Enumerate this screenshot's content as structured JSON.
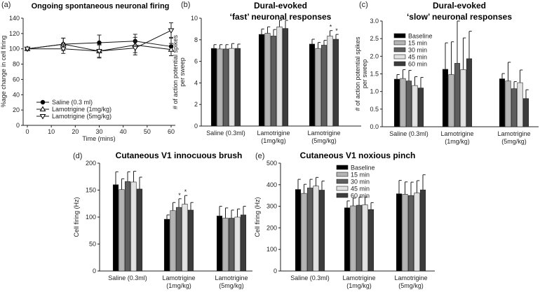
{
  "chart_data": [
    {
      "panel": "(a)",
      "type": "line",
      "title": "Ongoing spontaneous neuronal firing",
      "xlabel": "Time (mins)",
      "ylabel": "%age change in cell firing",
      "xlim": [
        0,
        60
      ],
      "ylim": [
        0,
        140
      ],
      "xticks": [
        0,
        10,
        20,
        30,
        40,
        50,
        60
      ],
      "yticks": [
        0,
        20,
        40,
        60,
        80,
        100,
        120,
        140
      ],
      "legend_position": "bottom-left",
      "x": [
        0,
        15,
        30,
        45,
        60
      ],
      "series": [
        {
          "name": "Saline (0.3 ml)",
          "marker": "circle",
          "values": [
            100,
            106,
            108,
            110,
            103
          ],
          "errors": [
            0,
            8,
            10,
            9,
            12
          ]
        },
        {
          "name": "Lamotrigine (1mg/kg)",
          "marker": "triangle-up",
          "values": [
            100,
            106,
            97,
            105,
            99
          ],
          "errors": [
            0,
            8,
            8,
            10,
            8
          ]
        },
        {
          "name": "Lamotrigine (5mg/kg)",
          "marker": "triangle-down",
          "values": [
            100,
            100,
            97,
            101,
            124
          ],
          "errors": [
            0,
            6,
            9,
            9,
            10
          ]
        }
      ]
    },
    {
      "panel": "(b)",
      "type": "bar",
      "title": [
        "Dural-evoked",
        "‘fast’ neuronal responses"
      ],
      "ylabel": [
        "# of action potential spikes",
        "per sweep"
      ],
      "ylim": [
        0,
        10
      ],
      "yticks": [
        0,
        2,
        4,
        6,
        8,
        10
      ],
      "yfmt": 0,
      "categories": [
        [
          "Saline (0.3ml)"
        ],
        [
          "Lamotrigine",
          "(1mg/kg)"
        ],
        [
          "Lamotrigine",
          "(5mg/kg)"
        ]
      ],
      "values": [
        [
          7.2,
          7.15,
          7.15,
          7.2,
          7.2
        ],
        [
          8.5,
          8.6,
          8.35,
          9.2,
          9.05
        ],
        [
          7.6,
          7.2,
          7.5,
          8.35,
          8.05
        ]
      ],
      "errors": [
        [
          0.35,
          0.4,
          0.4,
          0.45,
          0.4
        ],
        [
          0.5,
          0.6,
          0.6,
          0.6,
          0.75
        ],
        [
          0.45,
          0.55,
          0.45,
          0.5,
          0.45
        ]
      ],
      "significant": [
        [
          2,
          3
        ],
        [
          2,
          4
        ]
      ]
    },
    {
      "panel": "(c)",
      "type": "bar",
      "title": [
        "Dural-evoked",
        "‘slow’ neuronal responses"
      ],
      "ylabel": [
        "# of action potential spikes",
        "per sweep"
      ],
      "ylim": [
        0,
        3
      ],
      "yticks": [
        0,
        0.5,
        1,
        1.5,
        2,
        2.5,
        3
      ],
      "yfmt": 1,
      "legend_position": "top-left",
      "categories": [
        [
          "Saline (0.3ml)"
        ],
        [
          "Lamotrigine",
          "(1mg/kg)"
        ],
        [
          "Lamotrigine",
          "(5mg/kg)"
        ]
      ],
      "values": [
        [
          1.35,
          1.37,
          1.3,
          1.17,
          1.1
        ],
        [
          1.63,
          1.48,
          1.8,
          1.62,
          1.93
        ],
        [
          1.36,
          1.3,
          1.08,
          1.25,
          0.8
        ]
      ],
      "errors": [
        [
          0.13,
          0.25,
          0.3,
          0.25,
          0.3
        ],
        [
          0.75,
          0.93,
          1.2,
          0.9,
          0.78
        ],
        [
          0.15,
          0.53,
          0.2,
          0.36,
          0.25
        ]
      ],
      "significant": []
    },
    {
      "panel": "(d)",
      "type": "bar",
      "title": [
        "Cutaneous V1 innocuous brush"
      ],
      "ylabel": [
        "Cell firing (Hz)"
      ],
      "ylim": [
        0,
        200
      ],
      "yticks": [
        0,
        50,
        100,
        150,
        200
      ],
      "yfmt": 0,
      "categories": [
        [
          "Saline (0.3ml)"
        ],
        [
          "Lamotrigine",
          "(1mg/kg)"
        ],
        [
          "Lamotrigine",
          "(5mg/kg)"
        ]
      ],
      "values": [
        [
          160,
          151,
          166,
          165,
          152
        ],
        [
          96,
          112,
          118,
          124,
          113
        ],
        [
          102,
          98,
          98,
          100,
          104
        ]
      ],
      "errors": [
        [
          24,
          20,
          18,
          20,
          22
        ],
        [
          8,
          15,
          16,
          16,
          14
        ],
        [
          18,
          19,
          15,
          15,
          16
        ]
      ],
      "significant": [
        [
          1,
          2
        ],
        [
          1,
          3
        ]
      ]
    },
    {
      "panel": "(e)",
      "type": "bar",
      "title": [
        "Cutaneous V1 noxious pinch"
      ],
      "ylabel": [
        "Cell firing (Hz)"
      ],
      "ylim": [
        0,
        500
      ],
      "yticks": [
        0,
        100,
        200,
        300,
        400,
        500
      ],
      "yfmt": 0,
      "legend_position": "top-center",
      "categories": [
        [
          "Saline (0.3ml)"
        ],
        [
          "Lamotrigine",
          "(1mg/kg)"
        ],
        [
          "Lamotrigine",
          "(5mg/kg)"
        ]
      ],
      "values": [
        [
          378,
          360,
          385,
          394,
          375
        ],
        [
          293,
          302,
          305,
          307,
          285
        ],
        [
          358,
          356,
          350,
          362,
          376
        ]
      ],
      "errors": [
        [
          47,
          42,
          40,
          40,
          42
        ],
        [
          32,
          36,
          38,
          36,
          32
        ],
        [
          62,
          57,
          62,
          57,
          70
        ]
      ],
      "significant": []
    }
  ],
  "bar_series": [
    "Baseline",
    "15 min",
    "30 min",
    "45 min",
    "60 min"
  ],
  "bar_colors": [
    "#000000",
    "#b4b4b4",
    "#5e5e5e",
    "#e2e2e2",
    "#3c3c3c"
  ],
  "star": "*"
}
